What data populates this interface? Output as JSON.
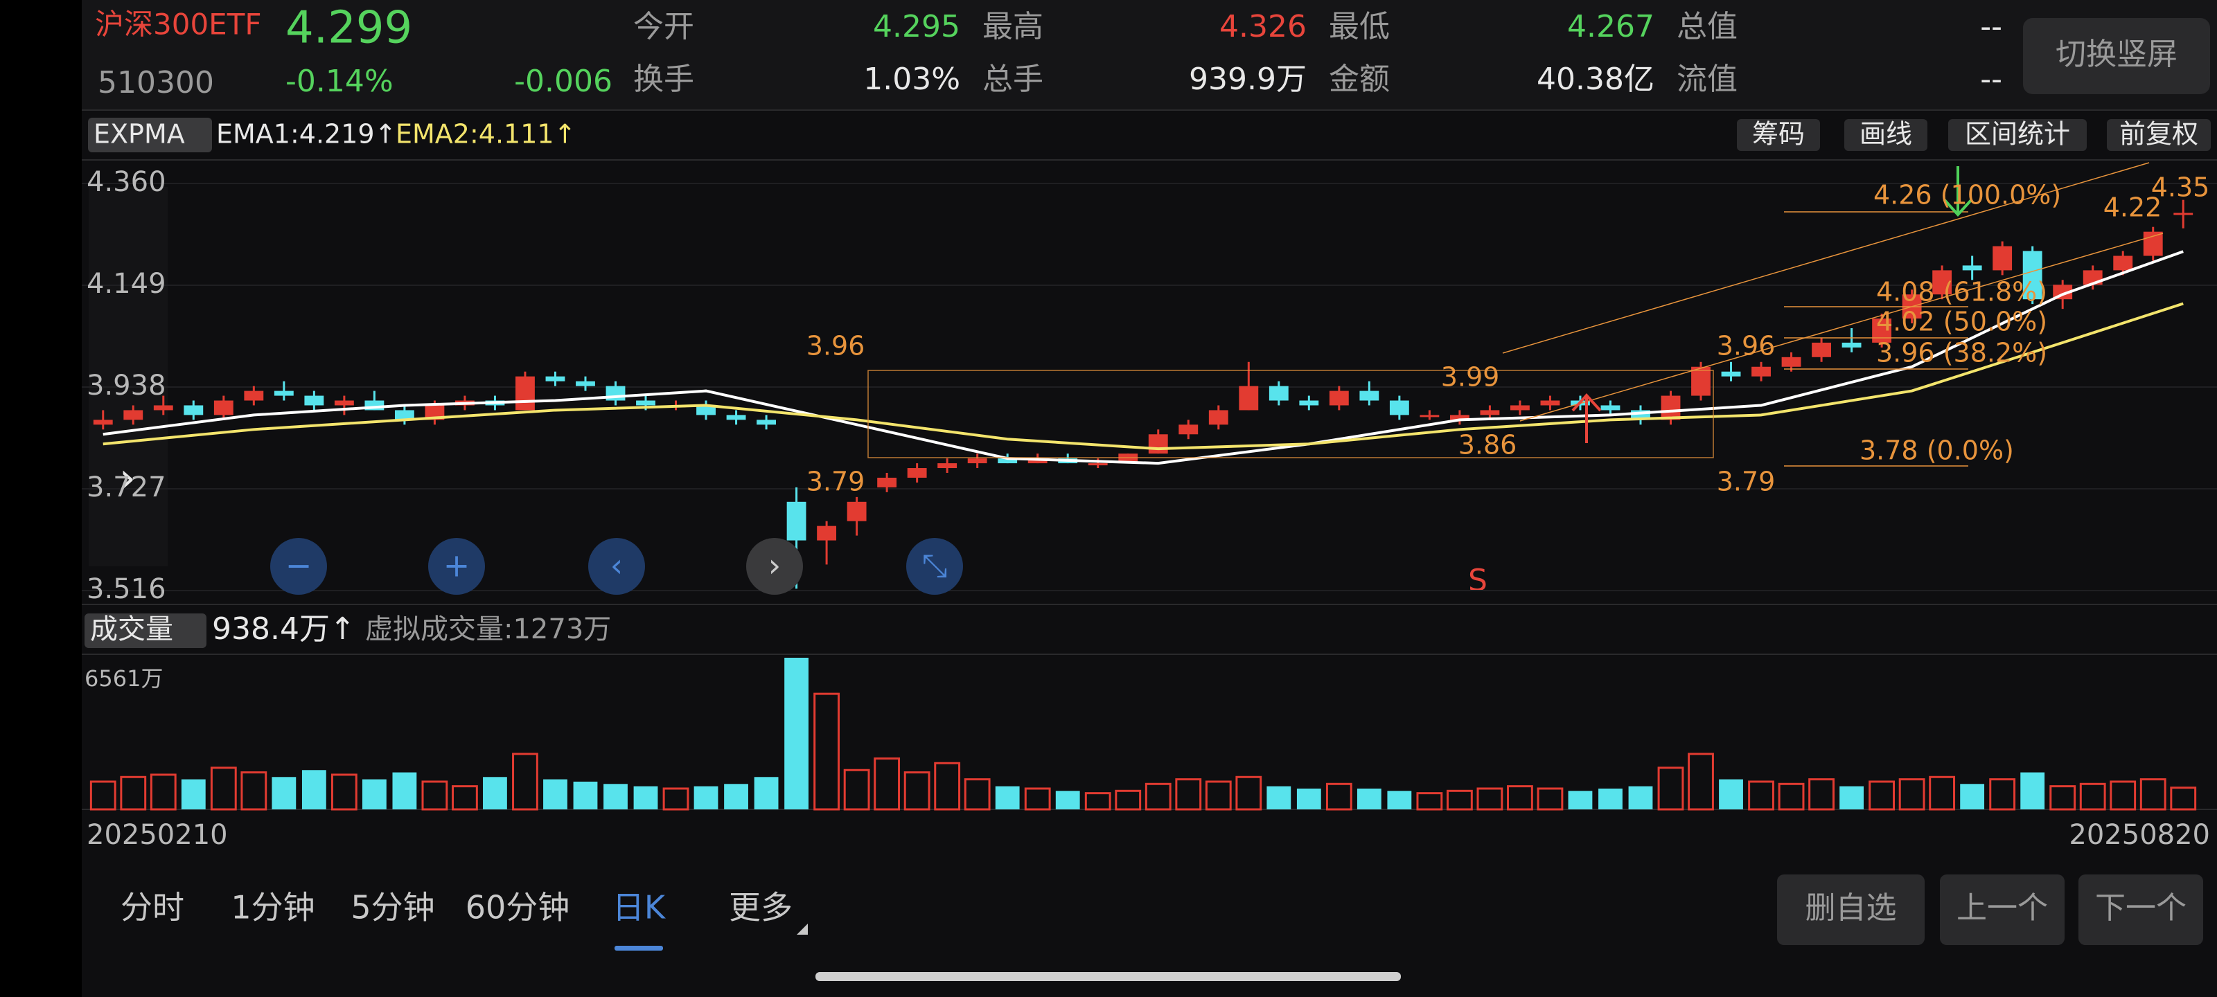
{
  "header": {
    "name": "沪深300ETF",
    "code": "510300",
    "price": "4.299",
    "change_pct": "-0.14%",
    "change": "-0.006",
    "stats": [
      [
        "今开",
        "4.295"
      ],
      [
        "最高",
        "4.326"
      ],
      [
        "最低",
        "4.267"
      ],
      [
        "总值",
        "--"
      ],
      [
        "换手",
        "1.03%"
      ],
      [
        "总手",
        "939.9万"
      ],
      [
        "金额",
        "40.38亿"
      ],
      [
        "流值",
        "--"
      ]
    ],
    "switch_button": "切换竖屏"
  },
  "indicator_bar": {
    "name": "EXPMA",
    "ema1": "EMA1:4.219↑",
    "ema2": "EMA2:4.111↑",
    "buttons": [
      "筹码",
      "画线",
      "区间统计",
      "前复权"
    ]
  },
  "chart_data": {
    "type": "candlestick",
    "up_color": "#e23b31",
    "down_color": "#58e3ec",
    "ema1_color": "#ffffff",
    "ema2_color": "#f3e46c",
    "grid": true,
    "ylim": [
      3.516,
      4.36
    ],
    "yticks": [
      {
        "value": 4.36,
        "label": "4.360"
      },
      {
        "value": 4.149,
        "label": "4.149"
      },
      {
        "value": 3.938,
        "label": "3.938"
      },
      {
        "value": 3.727,
        "label": "3.727"
      },
      {
        "value": 3.516,
        "label": "3.516"
      }
    ],
    "candles": [
      [
        3.86,
        3.89,
        3.85,
        3.87
      ],
      [
        3.87,
        3.9,
        3.86,
        3.89
      ],
      [
        3.89,
        3.92,
        3.88,
        3.9
      ],
      [
        3.9,
        3.91,
        3.87,
        3.88
      ],
      [
        3.88,
        3.92,
        3.87,
        3.91
      ],
      [
        3.91,
        3.94,
        3.9,
        3.93
      ],
      [
        3.93,
        3.95,
        3.91,
        3.92
      ],
      [
        3.92,
        3.93,
        3.89,
        3.9
      ],
      [
        3.9,
        3.92,
        3.88,
        3.91
      ],
      [
        3.91,
        3.93,
        3.89,
        3.89
      ],
      [
        3.89,
        3.9,
        3.86,
        3.87
      ],
      [
        3.87,
        3.91,
        3.86,
        3.9
      ],
      [
        3.9,
        3.92,
        3.89,
        3.91
      ],
      [
        3.91,
        3.92,
        3.89,
        3.9
      ],
      [
        3.89,
        3.97,
        3.89,
        3.96
      ],
      [
        3.96,
        3.97,
        3.94,
        3.95
      ],
      [
        3.95,
        3.96,
        3.93,
        3.94
      ],
      [
        3.94,
        3.95,
        3.9,
        3.91
      ],
      [
        3.91,
        3.92,
        3.89,
        3.9
      ],
      [
        3.9,
        3.91,
        3.89,
        3.9
      ],
      [
        3.9,
        3.91,
        3.87,
        3.88
      ],
      [
        3.88,
        3.89,
        3.86,
        3.87
      ],
      [
        3.87,
        3.88,
        3.85,
        3.86
      ],
      [
        3.7,
        3.73,
        3.52,
        3.62
      ],
      [
        3.62,
        3.66,
        3.57,
        3.65
      ],
      [
        3.66,
        3.71,
        3.63,
        3.7
      ],
      [
        3.73,
        3.76,
        3.72,
        3.75
      ],
      [
        3.75,
        3.78,
        3.74,
        3.77
      ],
      [
        3.77,
        3.79,
        3.76,
        3.78
      ],
      [
        3.78,
        3.8,
        3.77,
        3.79
      ],
      [
        3.79,
        3.8,
        3.78,
        3.78
      ],
      [
        3.78,
        3.8,
        3.78,
        3.79
      ],
      [
        3.79,
        3.8,
        3.78,
        3.78
      ],
      [
        3.78,
        3.79,
        3.77,
        3.78
      ],
      [
        3.78,
        3.8,
        3.78,
        3.8
      ],
      [
        3.8,
        3.85,
        3.8,
        3.84
      ],
      [
        3.84,
        3.87,
        3.83,
        3.86
      ],
      [
        3.86,
        3.9,
        3.85,
        3.89
      ],
      [
        3.89,
        3.99,
        3.89,
        3.94
      ],
      [
        3.94,
        3.95,
        3.9,
        3.91
      ],
      [
        3.91,
        3.92,
        3.89,
        3.9
      ],
      [
        3.9,
        3.94,
        3.89,
        3.93
      ],
      [
        3.93,
        3.95,
        3.9,
        3.91
      ],
      [
        3.91,
        3.92,
        3.87,
        3.88
      ],
      [
        3.88,
        3.89,
        3.87,
        3.88
      ],
      [
        3.87,
        3.89,
        3.86,
        3.88
      ],
      [
        3.88,
        3.9,
        3.87,
        3.89
      ],
      [
        3.89,
        3.91,
        3.88,
        3.9
      ],
      [
        3.9,
        3.92,
        3.89,
        3.91
      ],
      [
        3.91,
        3.92,
        3.89,
        3.9
      ],
      [
        3.9,
        3.91,
        3.88,
        3.89
      ],
      [
        3.89,
        3.9,
        3.86,
        3.87
      ],
      [
        3.87,
        3.93,
        3.86,
        3.92
      ],
      [
        3.92,
        3.99,
        3.91,
        3.98
      ],
      [
        3.97,
        3.99,
        3.95,
        3.96
      ],
      [
        3.96,
        3.99,
        3.95,
        3.98
      ],
      [
        3.98,
        4.01,
        3.97,
        4.0
      ],
      [
        4.0,
        4.04,
        3.99,
        4.03
      ],
      [
        4.03,
        4.06,
        4.01,
        4.02
      ],
      [
        4.03,
        4.09,
        4.02,
        4.08
      ],
      [
        4.08,
        4.14,
        4.07,
        4.13
      ],
      [
        4.13,
        4.19,
        4.12,
        4.18
      ],
      [
        4.19,
        4.21,
        4.16,
        4.18
      ],
      [
        4.18,
        4.24,
        4.17,
        4.23
      ],
      [
        4.22,
        4.23,
        4.11,
        4.12
      ],
      [
        4.12,
        4.16,
        4.1,
        4.15
      ],
      [
        4.15,
        4.19,
        4.14,
        4.18
      ],
      [
        4.18,
        4.22,
        4.17,
        4.21
      ],
      [
        4.21,
        4.27,
        4.2,
        4.26
      ],
      [
        4.295,
        4.326,
        4.267,
        4.299
      ]
    ],
    "ema_index": [
      0,
      5,
      10,
      15,
      20,
      25,
      30,
      35,
      40,
      45,
      50,
      55,
      60,
      65,
      69
    ],
    "ema1": [
      3.84,
      3.88,
      3.9,
      3.91,
      3.93,
      3.86,
      3.79,
      3.78,
      3.82,
      3.87,
      3.88,
      3.9,
      3.98,
      4.13,
      4.219
    ],
    "ema2": [
      3.82,
      3.85,
      3.87,
      3.89,
      3.9,
      3.87,
      3.83,
      3.81,
      3.82,
      3.85,
      3.87,
      3.88,
      3.93,
      4.03,
      4.111
    ]
  },
  "annotations": [
    "3.96",
    "3.79",
    "3.99",
    "3.86",
    "3.96",
    "3.79",
    "4.26 (100.0%)",
    "4.08 (61.8%)",
    "4.02 (50.0%)",
    "3.96 (38.2%)",
    "3.78 (0.0%)",
    "4.22",
    "4.35"
  ],
  "marker": "S",
  "volume": {
    "title": "成交量",
    "current": "938.4万↑",
    "virtual": "虚拟成交量:1273万",
    "ylim": [
      0,
      6561
    ],
    "yticks": [
      {
        "value": 6561,
        "label": "6561万"
      }
    ],
    "values": [
      1200,
      1400,
      1500,
      1300,
      1800,
      1600,
      1400,
      1700,
      1500,
      1300,
      1600,
      1200,
      1000,
      1400,
      2400,
      1300,
      1200,
      1100,
      1000,
      900,
      1000,
      1100,
      1400,
      6561,
      5000,
      1700,
      2200,
      1600,
      2000,
      1300,
      1000,
      900,
      800,
      700,
      800,
      1100,
      1300,
      1200,
      1400,
      1000,
      900,
      1100,
      900,
      800,
      700,
      800,
      900,
      1000,
      900,
      800,
      900,
      1000,
      1800,
      2400,
      1300,
      1200,
      1100,
      1300,
      1000,
      1200,
      1300,
      1400,
      1100,
      1300,
      1600,
      1000,
      1100,
      1200,
      1300,
      938.4
    ]
  },
  "x_labels": [
    "20250210",
    "20250820"
  ],
  "tabs": [
    "分时",
    "1分钟",
    "5分钟",
    "60分钟",
    "日K",
    "更多"
  ],
  "active_tab": 4,
  "actions": [
    "删自选",
    "上一个",
    "下一个"
  ]
}
